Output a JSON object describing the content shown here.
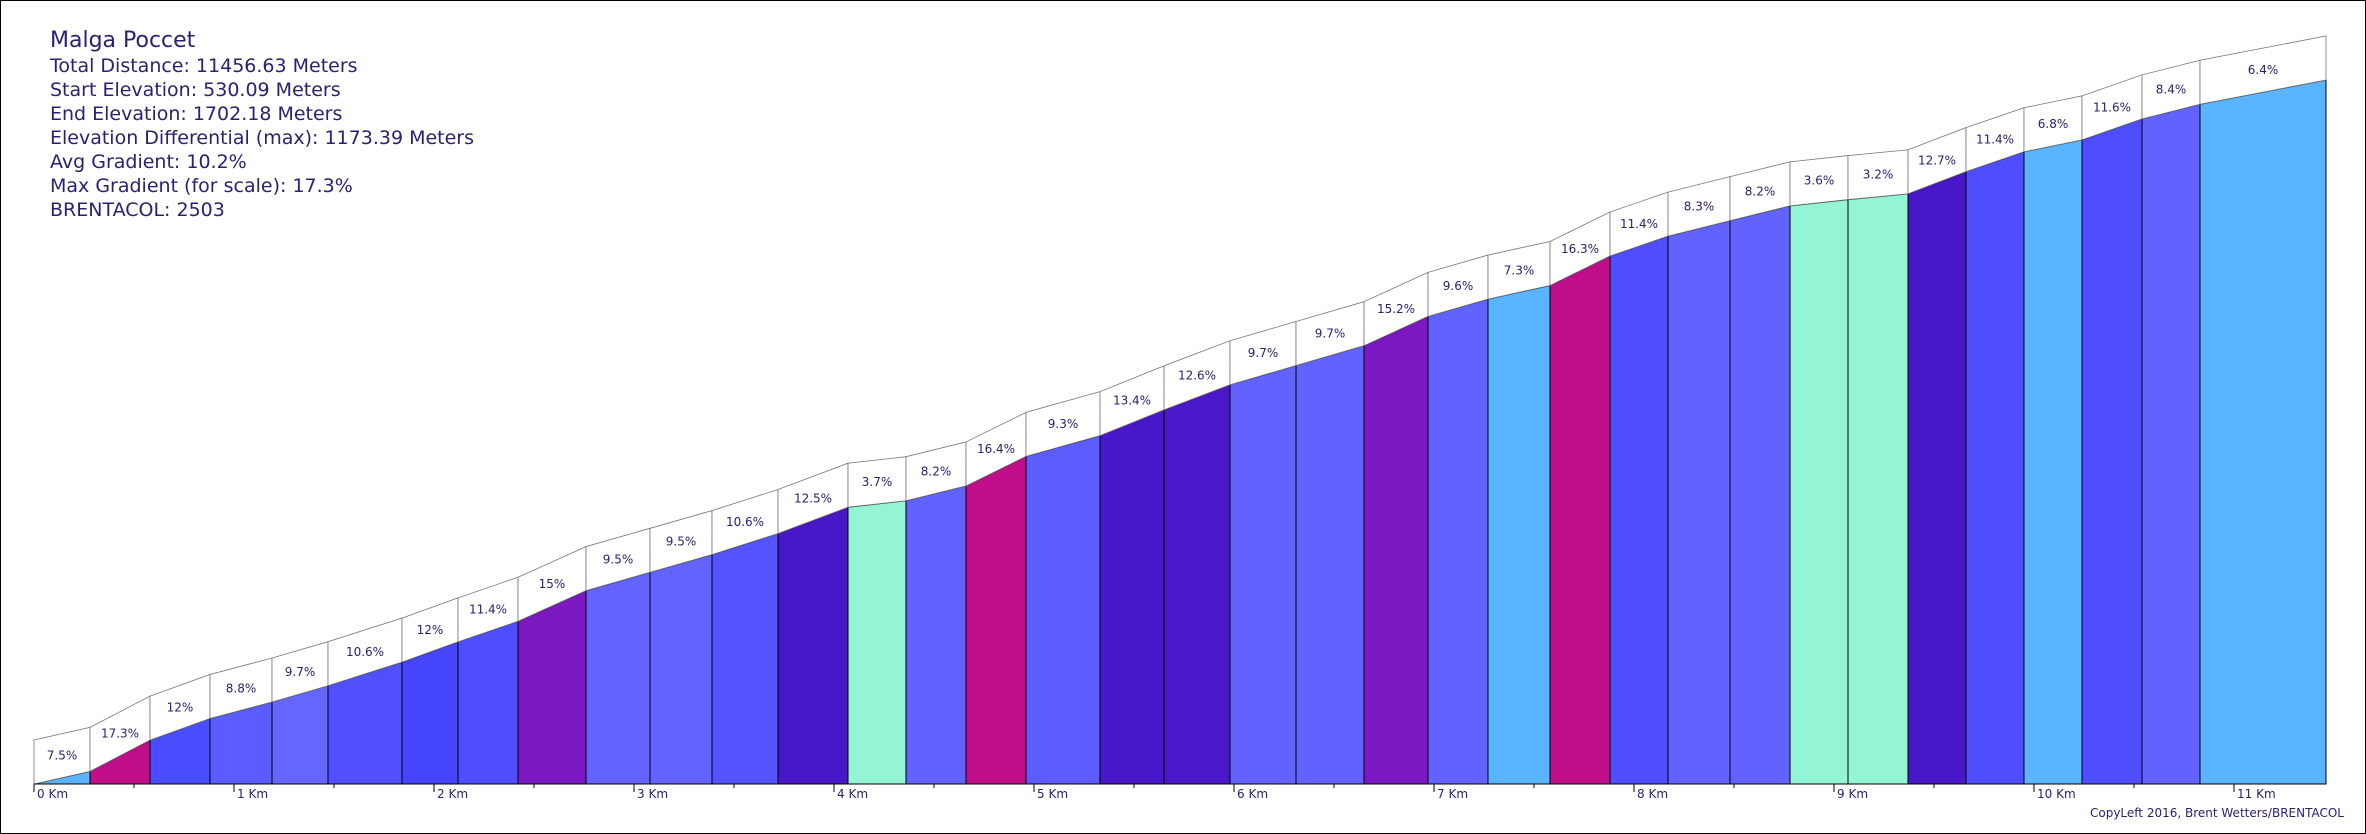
{
  "info": {
    "title": "Malga Poccet",
    "total_distance": "Total Distance: 11456.63 Meters",
    "start_elevation": "Start Elevation: 530.09 Meters",
    "end_elevation": "End Elevation: 1702.18 Meters",
    "elevation_diff": "Elevation Differential (max): 1173.39 Meters",
    "avg_gradient": "Avg Gradient: 10.2%",
    "max_gradient": "Max Gradient (for scale): 17.3%",
    "brentacol": "BRENTACOL: 2503"
  },
  "copyright": "CopyLeft 2016, Brent Wetters/BRENTACOL",
  "chart_data": {
    "type": "area",
    "title": "Malga Poccet",
    "xlim": [
      0,
      11.46
    ],
    "ylim": [
      530.09,
      1702.18
    ],
    "x_ticks": [
      "0 Km",
      "1 Km",
      "2 Km",
      "3 Km",
      "4 Km",
      "5 Km",
      "6 Km",
      "7 Km",
      "8 Km",
      "9 Km",
      "10 Km",
      "11 Km"
    ],
    "segments": [
      {
        "x0": 0.0,
        "x1": 0.28,
        "gradient_label": "7.5%",
        "color": "#5ab4ff"
      },
      {
        "x0": 0.28,
        "x1": 0.58,
        "gradient_label": "17.3%",
        "color": "#c00e8a"
      },
      {
        "x0": 0.58,
        "x1": 0.88,
        "gradient_label": "12%",
        "color": "#4a4cff"
      },
      {
        "x0": 0.88,
        "x1": 1.19,
        "gradient_label": "8.8%",
        "color": "#5a5cff"
      },
      {
        "x0": 1.19,
        "x1": 1.47,
        "gradient_label": "9.7%",
        "color": "#6565ff"
      },
      {
        "x0": 1.47,
        "x1": 1.84,
        "gradient_label": "10.6%",
        "color": "#5050ff"
      },
      {
        "x0": 1.84,
        "x1": 2.12,
        "gradient_label": "12%",
        "color": "#4545ff"
      },
      {
        "x0": 2.12,
        "x1": 2.42,
        "gradient_label": "11.4%",
        "color": "#4e4eff"
      },
      {
        "x0": 2.42,
        "x1": 2.76,
        "gradient_label": "15%",
        "color": "#7b18c2"
      },
      {
        "x0": 2.76,
        "x1": 3.08,
        "gradient_label": "9.5%",
        "color": "#6363ff"
      },
      {
        "x0": 3.08,
        "x1": 3.39,
        "gradient_label": "9.5%",
        "color": "#6363ff"
      },
      {
        "x0": 3.39,
        "x1": 3.72,
        "gradient_label": "10.6%",
        "color": "#5454ff"
      },
      {
        "x0": 3.72,
        "x1": 4.07,
        "gradient_label": "12.5%",
        "color": "#4717c8"
      },
      {
        "x0": 4.07,
        "x1": 4.36,
        "gradient_label": "3.7%",
        "color": "#93f5d5"
      },
      {
        "x0": 4.36,
        "x1": 4.66,
        "gradient_label": "8.2%",
        "color": "#6262ff"
      },
      {
        "x0": 4.66,
        "x1": 4.96,
        "gradient_label": "16.4%",
        "color": "#c00e8a"
      },
      {
        "x0": 4.96,
        "x1": 5.33,
        "gradient_label": "9.3%",
        "color": "#5c5cff"
      },
      {
        "x0": 5.33,
        "x1": 5.65,
        "gradient_label": "13.4%",
        "color": "#4717c8"
      },
      {
        "x0": 5.65,
        "x1": 5.98,
        "gradient_label": "12.6%",
        "color": "#4a18c8"
      },
      {
        "x0": 5.98,
        "x1": 6.31,
        "gradient_label": "9.7%",
        "color": "#6262ff"
      },
      {
        "x0": 6.31,
        "x1": 6.65,
        "gradient_label": "9.7%",
        "color": "#6262ff"
      },
      {
        "x0": 6.65,
        "x1": 6.97,
        "gradient_label": "15.2%",
        "color": "#7b18c2"
      },
      {
        "x0": 6.97,
        "x1": 7.27,
        "gradient_label": "9.6%",
        "color": "#6262ff"
      },
      {
        "x0": 7.27,
        "x1": 7.58,
        "gradient_label": "7.3%",
        "color": "#5ab4ff"
      },
      {
        "x0": 7.58,
        "x1": 7.88,
        "gradient_label": "16.3%",
        "color": "#c00e8a"
      },
      {
        "x0": 7.88,
        "x1": 8.17,
        "gradient_label": "11.4%",
        "color": "#4e4eff"
      },
      {
        "x0": 8.17,
        "x1": 8.48,
        "gradient_label": "8.3%",
        "color": "#6262ff"
      },
      {
        "x0": 8.48,
        "x1": 8.78,
        "gradient_label": "8.2%",
        "color": "#6262ff"
      },
      {
        "x0": 8.78,
        "x1": 9.07,
        "gradient_label": "3.6%",
        "color": "#93f5d5"
      },
      {
        "x0": 9.07,
        "x1": 9.37,
        "gradient_label": "3.2%",
        "color": "#93f5d5"
      },
      {
        "x0": 9.37,
        "x1": 9.66,
        "gradient_label": "12.7%",
        "color": "#4717c8"
      },
      {
        "x0": 9.66,
        "x1": 9.95,
        "gradient_label": "11.4%",
        "color": "#4e4eff"
      },
      {
        "x0": 9.95,
        "x1": 10.24,
        "gradient_label": "6.8%",
        "color": "#5ab4ff"
      },
      {
        "x0": 10.24,
        "x1": 10.54,
        "gradient_label": "11.6%",
        "color": "#4e4eff"
      },
      {
        "x0": 10.54,
        "x1": 10.83,
        "gradient_label": "8.4%",
        "color": "#6262ff"
      },
      {
        "x0": 10.83,
        "x1": 11.46,
        "gradient_label": "6.4%",
        "color": "#5ab4ff"
      }
    ]
  }
}
